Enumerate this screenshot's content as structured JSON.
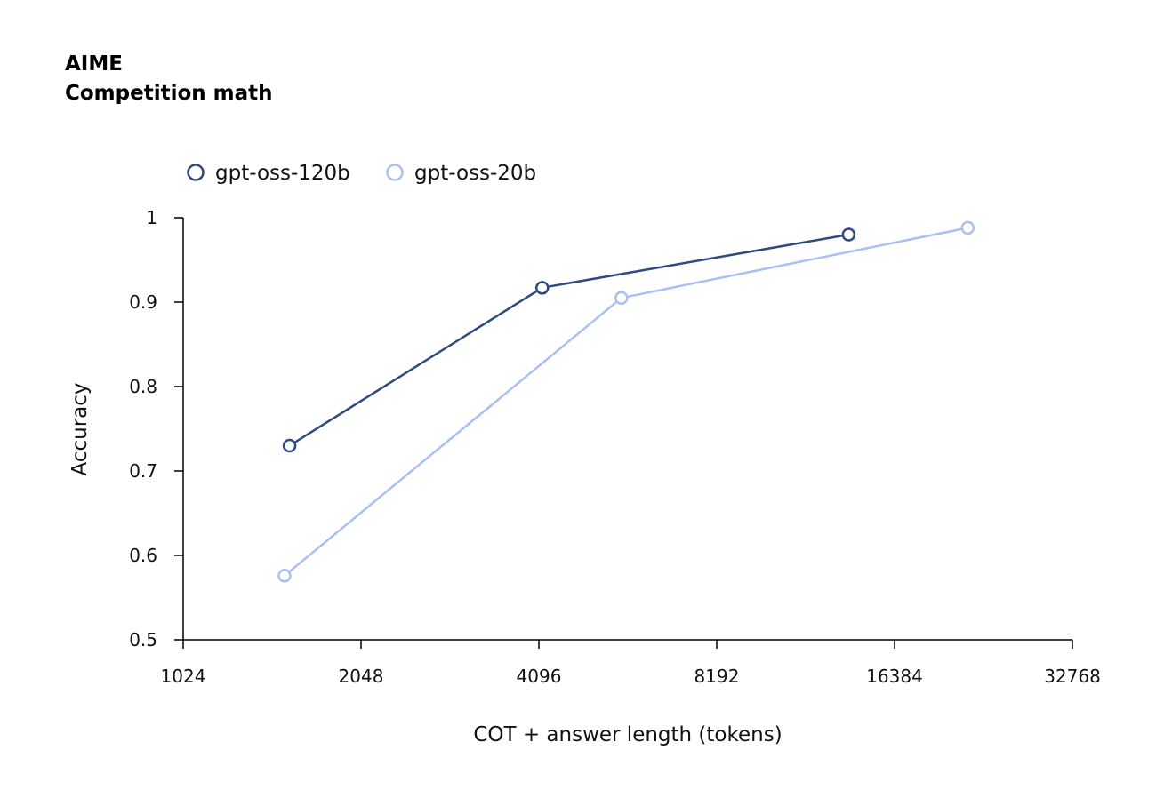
{
  "chart_data": {
    "type": "line",
    "title": "AIME",
    "subtitle": "Competition math",
    "xlabel": "COT + answer length (tokens)",
    "ylabel": "Accuracy",
    "xscale": "log2",
    "xlim": [
      1024,
      32768
    ],
    "ylim": [
      0.5,
      1.0
    ],
    "xticks": [
      1024,
      2048,
      4096,
      8192,
      16384,
      32768
    ],
    "xtick_labels": [
      "1024",
      "2048",
      "4096",
      "8192",
      "16384",
      "32768"
    ],
    "yticks": [
      0.5,
      0.6,
      0.7,
      0.8,
      0.9,
      1.0
    ],
    "ytick_labels": [
      "0.5",
      "0.6",
      "0.7",
      "0.8",
      "0.9",
      "1"
    ],
    "grid": false,
    "legend_position": "top-left",
    "series": [
      {
        "name": "gpt-oss-120b",
        "color": "#2e4a80",
        "x": [
          1550,
          4150,
          13700
        ],
        "y": [
          0.73,
          0.917,
          0.98
        ]
      },
      {
        "name": "gpt-oss-20b",
        "color": "#a9c0f2",
        "x": [
          1520,
          5650,
          21800
        ],
        "y": [
          0.576,
          0.905,
          0.988
        ]
      }
    ]
  }
}
